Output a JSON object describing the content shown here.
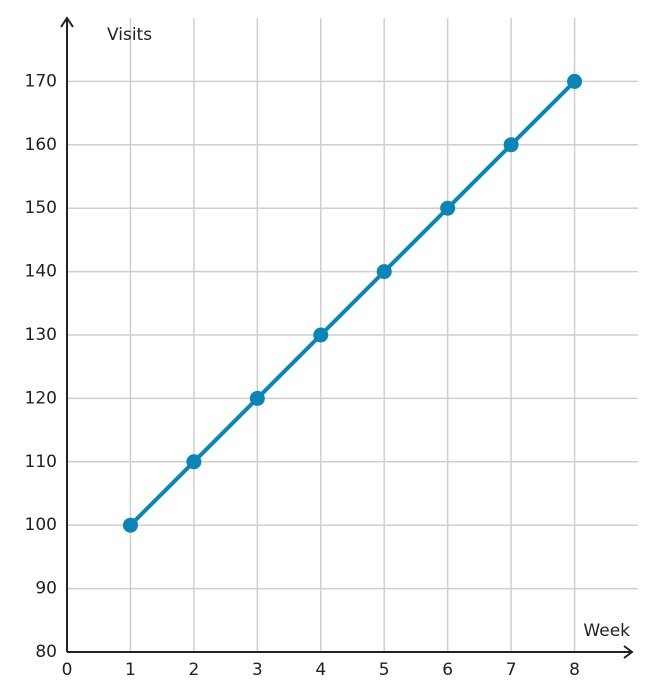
{
  "chart_data": {
    "type": "line",
    "x_label": "Week",
    "y_label": "Visits",
    "x": [
      1,
      2,
      3,
      4,
      5,
      6,
      7,
      8
    ],
    "series": [
      {
        "name": "Visits",
        "color": "#0a85b5",
        "values": [
          100,
          110,
          120,
          130,
          140,
          150,
          160,
          170
        ]
      }
    ],
    "xlim": [
      0,
      9
    ],
    "ylim": [
      80,
      180
    ],
    "xticks": [
      0,
      1,
      2,
      3,
      4,
      5,
      6,
      7,
      8
    ],
    "yticks": [
      80,
      90,
      100,
      110,
      120,
      130,
      140,
      150,
      160,
      170
    ],
    "grid": true
  }
}
